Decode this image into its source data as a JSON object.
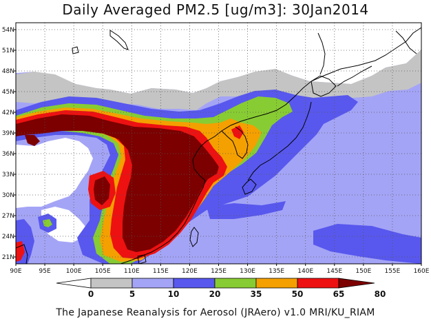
{
  "title": "Daily Averaged PM2.5 [ug/m3]: 30Jan2014",
  "credit": "The Japanese Reanalysis for Aerosol (JRAero) v1.0 MRI/KU_RIAM",
  "map": {
    "lon_range": [
      90,
      160
    ],
    "lat_range": [
      20,
      55
    ],
    "lon_ticks": [
      "90E",
      "95E",
      "100E",
      "105E",
      "110E",
      "115E",
      "120E",
      "125E",
      "130E",
      "135E",
      "140E",
      "145E",
      "150E",
      "155E",
      "160E"
    ],
    "lat_ticks": [
      "21N",
      "24N",
      "27N",
      "30N",
      "33N",
      "36N",
      "39N",
      "42N",
      "45N",
      "48N",
      "51N",
      "54N"
    ],
    "grid": "dotted"
  },
  "colorbar": {
    "labels": [
      "0",
      "5",
      "10",
      "20",
      "35",
      "50",
      "65",
      "80"
    ],
    "colors": [
      "#ffffff",
      "#c4c4c4",
      "#a4a4f6",
      "#5858ee",
      "#88cc33",
      "#f4a000",
      "#ee1111",
      "#7c0000"
    ]
  },
  "colors": {
    "bg": "#ffffff",
    "c0_5": "#ffffff",
    "c5_10": "#c4c4c4",
    "c10_20": "#a4a4f6",
    "c20_35": "#5858ee",
    "c35_50": "#88cc33",
    "c50_65": "#f4a000",
    "c65_80": "#ee1111",
    "c80": "#7c0000"
  }
}
